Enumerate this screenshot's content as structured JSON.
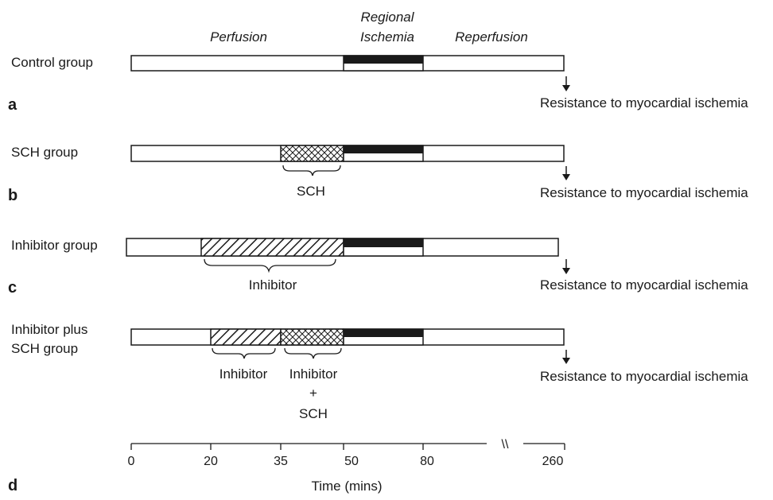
{
  "phases": {
    "perfusion": "Perfusion",
    "regional_line1": "Regional",
    "regional_line2": "Ischemia",
    "reperfusion": "Reperfusion"
  },
  "groups": [
    {
      "letter": "a",
      "name_line1": "Control group",
      "name_line2": "",
      "outcome": "Resistance to myocardial ischemia"
    },
    {
      "letter": "b",
      "name_line1": "SCH group",
      "name_line2": "",
      "outcome": "Resistance to myocardial ischemia",
      "bracket_label": "SCH"
    },
    {
      "letter": "c",
      "name_line1": "Inhibitor group",
      "name_line2": "",
      "outcome": "Resistance to myocardial ischemia",
      "bracket_label": "Inhibitor"
    },
    {
      "letter": "",
      "name_line1": "Inhibitor plus",
      "name_line2": "SCH group",
      "outcome": "Resistance to myocardial ischemia",
      "bracket_label_1": "Inhibitor",
      "bracket_label_2_line1": "Inhibitor",
      "bracket_label_2_line2": "+",
      "bracket_label_2_line3": "SCH"
    }
  ],
  "axis": {
    "letter": "d",
    "ticks": [
      "0",
      "20",
      "35",
      "50",
      "80",
      "260"
    ],
    "break_mark": "\\\\",
    "label": "Time (mins)"
  }
}
